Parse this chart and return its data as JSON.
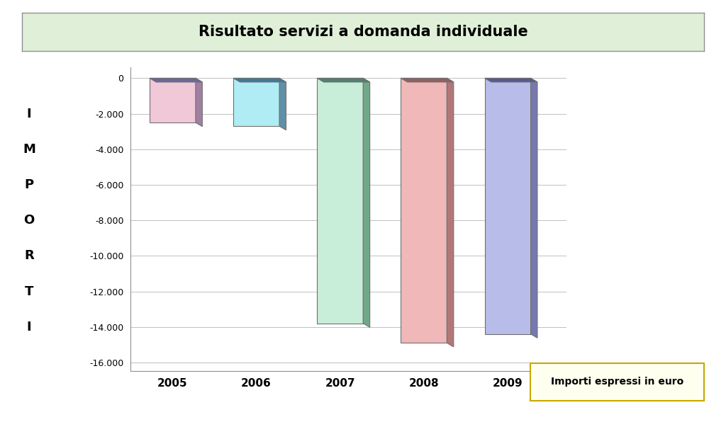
{
  "title": "Risultato servizi a domanda individuale",
  "years": [
    "2005",
    "2006",
    "2007",
    "2008",
    "2009"
  ],
  "values": [
    -2500,
    -2700,
    -13800,
    -14900,
    -14400
  ],
  "bar_face_colors": [
    "#f0c8d8",
    "#b0ecf4",
    "#c8edd8",
    "#f0b8b8",
    "#b8bce8"
  ],
  "bar_side_colors": [
    "#a080a0",
    "#6090a8",
    "#70a888",
    "#b07878",
    "#7878b0"
  ],
  "bar_top_colors": [
    "#686898",
    "#407898",
    "#508070",
    "#906060",
    "#585890"
  ],
  "yticks": [
    0,
    -2000,
    -4000,
    -6000,
    -8000,
    -10000,
    -12000,
    -14000,
    -16000
  ],
  "ytick_labels": [
    "0",
    "-2.000",
    "-4.000",
    "-6.000",
    "-8.000",
    "-10.000",
    "-12.000",
    "-14.000",
    "-16.000"
  ],
  "ylim": [
    -16500,
    600
  ],
  "ylabel_letters": [
    "I",
    "M",
    "P",
    "O",
    "R",
    "T",
    "I"
  ],
  "ylabel_y_positions": [
    -2000,
    -4000,
    -6000,
    -8000,
    -10000,
    -12000,
    -14000
  ],
  "legend_text": "Importi espressi in euro",
  "title_box_color": "#e0f0d8",
  "legend_box_color": "#fffff0",
  "grid_color": "#c0c0c0",
  "bg_color": "#ffffff",
  "ox": 0.08,
  "oy": 220,
  "bar_width": 0.55
}
